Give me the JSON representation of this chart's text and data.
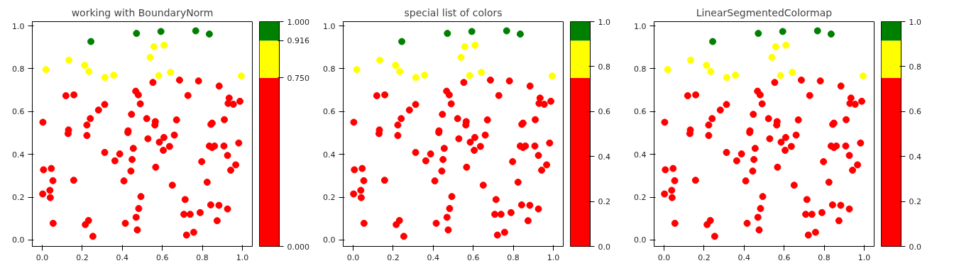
{
  "chart_data": [
    {
      "type": "scatter",
      "title": "working with BoundaryNorm",
      "xlim": [
        -0.05,
        1.05
      ],
      "ylim": [
        -0.03,
        1.02
      ],
      "xticks": [
        {
          "value": 0,
          "label": "0.0"
        },
        {
          "value": 0.2,
          "label": "0.2"
        },
        {
          "value": 0.4,
          "label": "0.4"
        },
        {
          "value": 0.6,
          "label": "0.6"
        },
        {
          "value": 0.8,
          "label": "0.8"
        },
        {
          "value": 1,
          "label": "1.0"
        }
      ],
      "yticks": [
        {
          "value": 0,
          "label": "0.0"
        },
        {
          "value": 0.2,
          "label": "0.2"
        },
        {
          "value": 0.4,
          "label": "0.4"
        },
        {
          "value": 0.6,
          "label": "0.6"
        },
        {
          "value": 0.8,
          "label": "0.8"
        },
        {
          "value": 1,
          "label": "1.0"
        }
      ],
      "clim": [
        0,
        1
      ],
      "cticks": [
        {
          "value": 0,
          "label": "0.000"
        },
        {
          "value": 0.75,
          "label": "0.750"
        },
        {
          "value": 0.916,
          "label": "0.916"
        },
        {
          "value": 1,
          "label": "1.000"
        }
      ],
      "colors": [
        "#ff0000",
        "#ffff00",
        "#008000"
      ],
      "grid": false,
      "marker": "circle",
      "series": [
        {
          "x": [
            0.243,
            0.471,
            0.593,
            0.767,
            0.835,
            0.018,
            0.133,
            0.212,
            0.233,
            0.313,
            0.357,
            0.539,
            0.558,
            0.609,
            0.582,
            0.641,
            0.995,
            0.003,
            0.118,
            0.158,
            0.131,
            0.129,
            0.223,
            0.24,
            0.223,
            0.281,
            0.312,
            0.446,
            0.429,
            0.428,
            0.467,
            0.48,
            0.49,
            0.553,
            0.686,
            0.781,
            0.884,
            0.728,
            0.934,
            0.929,
            0.955,
            0.988,
            0.522,
            0.565,
            0.563,
            0.671,
            0.849,
            0.91,
            0.455,
            0.528,
            0.585,
            0.608,
            0.605,
            0.636,
            0.66,
            0.567,
            0.65,
            0.835,
            0.849,
            0.861,
            0.908,
            0.982,
            0.926,
            0.797,
            0.967,
            0.942,
            0.824,
            0.493,
            0.482,
            0.469,
            0.475,
            0.714,
            0.708,
            0.739,
            0.789,
            0.842,
            0.883,
            0.926,
            0.874,
            0.721,
            0.757,
            0.449,
            0.443,
            0.312,
            0.363,
            0.387,
            0.408,
            0.415,
            0.006,
            0.045,
            0.053,
            0.002,
            0.038,
            0.04,
            0.157,
            0.054,
            0.215,
            0.231,
            0.253,
            0.843
          ],
          "values": [
            0.927,
            0.965,
            0.974,
            0.977,
            0.962,
            0.796,
            0.84,
            0.816,
            0.787,
            0.759,
            0.77,
            0.853,
            0.903,
            0.91,
            0.768,
            0.783,
            0.766,
            0.55,
            0.674,
            0.678,
            0.514,
            0.497,
            0.537,
            0.567,
            0.488,
            0.607,
            0.633,
            0.587,
            0.51,
            0.502,
            0.695,
            0.678,
            0.636,
            0.736,
            0.747,
            0.743,
            0.719,
            0.675,
            0.663,
            0.638,
            0.634,
            0.648,
            0.567,
            0.553,
            0.537,
            0.561,
            0.546,
            0.562,
            0.428,
            0.473,
            0.457,
            0.479,
            0.419,
            0.437,
            0.49,
            0.34,
            0.256,
            0.439,
            0.432,
            0.439,
            0.439,
            0.453,
            0.395,
            0.366,
            0.351,
            0.326,
            0.27,
            0.203,
            0.147,
            0.106,
            0.047,
            0.189,
            0.12,
            0.12,
            0.128,
            0.164,
            0.162,
            0.145,
            0.09,
            0.023,
            0.036,
            0.376,
            0.322,
            0.409,
            0.37,
            0.402,
            0.276,
            0.078,
            0.328,
            0.334,
            0.277,
            0.215,
            0.232,
            0.198,
            0.279,
            0.078,
            0.072,
            0.091,
            0.017,
            0.54
          ],
          "colors": [
            "#008000",
            "#008000",
            "#008000",
            "#008000",
            "#008000",
            "#ffff00",
            "#ffff00",
            "#ffff00",
            "#ffff00",
            "#ffff00",
            "#ffff00",
            "#ffff00",
            "#ffff00",
            "#ffff00",
            "#ffff00",
            "#ffff00",
            "#ffff00",
            "#ff0000",
            "#ff0000",
            "#ff0000",
            "#ff0000",
            "#ff0000",
            "#ff0000",
            "#ff0000",
            "#ff0000",
            "#ff0000",
            "#ff0000",
            "#ff0000",
            "#ff0000",
            "#ff0000",
            "#ff0000",
            "#ff0000",
            "#ff0000",
            "#ff0000",
            "#ff0000",
            "#ff0000",
            "#ff0000",
            "#ff0000",
            "#ff0000",
            "#ff0000",
            "#ff0000",
            "#ff0000",
            "#ff0000",
            "#ff0000",
            "#ff0000",
            "#ff0000",
            "#ff0000",
            "#ff0000",
            "#ff0000",
            "#ff0000",
            "#ff0000",
            "#ff0000",
            "#ff0000",
            "#ff0000",
            "#ff0000",
            "#ff0000",
            "#ff0000",
            "#ff0000",
            "#ff0000",
            "#ff0000",
            "#ff0000",
            "#ff0000",
            "#ff0000",
            "#ff0000",
            "#ff0000",
            "#ff0000",
            "#ff0000",
            "#ff0000",
            "#ff0000",
            "#ff0000",
            "#ff0000",
            "#ff0000",
            "#ff0000",
            "#ff0000",
            "#ff0000",
            "#ff0000",
            "#ff0000",
            "#ff0000",
            "#ff0000",
            "#ff0000",
            "#ff0000",
            "#ff0000",
            "#ff0000",
            "#ff0000",
            "#ff0000",
            "#ff0000",
            "#ff0000",
            "#ff0000",
            "#ff0000",
            "#ff0000",
            "#ff0000",
            "#ff0000",
            "#ff0000",
            "#ff0000",
            "#ff0000",
            "#ff0000",
            "#ff0000",
            "#ff0000",
            "#ff0000",
            "#ff0000"
          ]
        }
      ]
    },
    {
      "type": "scatter",
      "title": "special list of colors",
      "xlim": [
        -0.05,
        1.05
      ],
      "ylim": [
        -0.03,
        1.02
      ],
      "xticks": [
        {
          "value": 0,
          "label": "0.0"
        },
        {
          "value": 0.2,
          "label": "0.2"
        },
        {
          "value": 0.4,
          "label": "0.4"
        },
        {
          "value": 0.6,
          "label": "0.6"
        },
        {
          "value": 0.8,
          "label": "0.8"
        },
        {
          "value": 1,
          "label": "1.0"
        }
      ],
      "yticks": [
        {
          "value": 0,
          "label": "0.0"
        },
        {
          "value": 0.2,
          "label": "0.2"
        },
        {
          "value": 0.4,
          "label": "0.4"
        },
        {
          "value": 0.6,
          "label": "0.6"
        },
        {
          "value": 0.8,
          "label": "0.8"
        },
        {
          "value": 1,
          "label": "1.0"
        }
      ],
      "clim": [
        0,
        1
      ],
      "cticks": [
        {
          "value": 0,
          "label": "0.0"
        },
        {
          "value": 0.2,
          "label": "0.2"
        },
        {
          "value": 0.4,
          "label": "0.4"
        },
        {
          "value": 0.6,
          "label": "0.6"
        },
        {
          "value": 0.8,
          "label": "0.8"
        },
        {
          "value": 1,
          "label": "1.0"
        }
      ],
      "colors": [
        "#ff0000",
        "#ffff00",
        "#008000"
      ],
      "marker": "circle",
      "series": [
        {
          "x": [
            0.243,
            0.471,
            0.593,
            0.767,
            0.835,
            0.018,
            0.133,
            0.212,
            0.233,
            0.313,
            0.357,
            0.539,
            0.558,
            0.609,
            0.582,
            0.641,
            0.995,
            0.003,
            0.118,
            0.158,
            0.131,
            0.129,
            0.223,
            0.24,
            0.223,
            0.281,
            0.312,
            0.446,
            0.429,
            0.428,
            0.467,
            0.48,
            0.49,
            0.553,
            0.686,
            0.781,
            0.884,
            0.728,
            0.934,
            0.929,
            0.955,
            0.988,
            0.522,
            0.565,
            0.563,
            0.671,
            0.849,
            0.91,
            0.455,
            0.528,
            0.585,
            0.608,
            0.605,
            0.636,
            0.66,
            0.567,
            0.65,
            0.835,
            0.849,
            0.861,
            0.908,
            0.982,
            0.926,
            0.797,
            0.967,
            0.942,
            0.824,
            0.493,
            0.482,
            0.469,
            0.475,
            0.714,
            0.708,
            0.739,
            0.789,
            0.842,
            0.883,
            0.926,
            0.874,
            0.721,
            0.757,
            0.449,
            0.443,
            0.312,
            0.363,
            0.387,
            0.408,
            0.415,
            0.006,
            0.045,
            0.053,
            0.002,
            0.038,
            0.04,
            0.157,
            0.054,
            0.215,
            0.231,
            0.253,
            0.843
          ],
          "values": [
            0.927,
            0.965,
            0.974,
            0.977,
            0.962,
            0.796,
            0.84,
            0.816,
            0.787,
            0.759,
            0.77,
            0.853,
            0.903,
            0.91,
            0.768,
            0.783,
            0.766,
            0.55,
            0.674,
            0.678,
            0.514,
            0.497,
            0.537,
            0.567,
            0.488,
            0.607,
            0.633,
            0.587,
            0.51,
            0.502,
            0.695,
            0.678,
            0.636,
            0.736,
            0.747,
            0.743,
            0.719,
            0.675,
            0.663,
            0.638,
            0.634,
            0.648,
            0.567,
            0.553,
            0.537,
            0.561,
            0.546,
            0.562,
            0.428,
            0.473,
            0.457,
            0.479,
            0.419,
            0.437,
            0.49,
            0.34,
            0.256,
            0.439,
            0.432,
            0.439,
            0.439,
            0.453,
            0.395,
            0.366,
            0.351,
            0.326,
            0.27,
            0.203,
            0.147,
            0.106,
            0.047,
            0.189,
            0.12,
            0.12,
            0.128,
            0.164,
            0.162,
            0.145,
            0.09,
            0.023,
            0.036,
            0.376,
            0.322,
            0.409,
            0.37,
            0.402,
            0.276,
            0.078,
            0.328,
            0.334,
            0.277,
            0.215,
            0.232,
            0.198,
            0.279,
            0.078,
            0.072,
            0.091,
            0.017,
            0.54
          ],
          "colors": [
            "#008000",
            "#008000",
            "#008000",
            "#008000",
            "#008000",
            "#ffff00",
            "#ffff00",
            "#ffff00",
            "#ffff00",
            "#ffff00",
            "#ffff00",
            "#ffff00",
            "#ffff00",
            "#ffff00",
            "#ffff00",
            "#ffff00",
            "#ffff00",
            "#ff0000",
            "#ff0000",
            "#ff0000",
            "#ff0000",
            "#ff0000",
            "#ff0000",
            "#ff0000",
            "#ff0000",
            "#ff0000",
            "#ff0000",
            "#ff0000",
            "#ff0000",
            "#ff0000",
            "#ff0000",
            "#ff0000",
            "#ff0000",
            "#ff0000",
            "#ff0000",
            "#ff0000",
            "#ff0000",
            "#ff0000",
            "#ff0000",
            "#ff0000",
            "#ff0000",
            "#ff0000",
            "#ff0000",
            "#ff0000",
            "#ff0000",
            "#ff0000",
            "#ff0000",
            "#ff0000",
            "#ff0000",
            "#ff0000",
            "#ff0000",
            "#ff0000",
            "#ff0000",
            "#ff0000",
            "#ff0000",
            "#ff0000",
            "#ff0000",
            "#ff0000",
            "#ff0000",
            "#ff0000",
            "#ff0000",
            "#ff0000",
            "#ff0000",
            "#ff0000",
            "#ff0000",
            "#ff0000",
            "#ff0000",
            "#ff0000",
            "#ff0000",
            "#ff0000",
            "#ff0000",
            "#ff0000",
            "#ff0000",
            "#ff0000",
            "#ff0000",
            "#ff0000",
            "#ff0000",
            "#ff0000",
            "#ff0000",
            "#ff0000",
            "#ff0000",
            "#ff0000",
            "#ff0000",
            "#ff0000",
            "#ff0000",
            "#ff0000",
            "#ff0000",
            "#ff0000",
            "#ff0000",
            "#ff0000",
            "#ff0000",
            "#ff0000",
            "#ff0000",
            "#ff0000",
            "#ff0000",
            "#ff0000",
            "#ff0000",
            "#ff0000",
            "#ff0000",
            "#ff0000"
          ]
        }
      ]
    },
    {
      "type": "scatter",
      "title": "LinearSegmentedColormap",
      "xlim": [
        -0.05,
        1.05
      ],
      "ylim": [
        -0.03,
        1.02
      ],
      "xticks": [
        {
          "value": 0,
          "label": "0.0"
        },
        {
          "value": 0.2,
          "label": "0.2"
        },
        {
          "value": 0.4,
          "label": "0.4"
        },
        {
          "value": 0.6,
          "label": "0.6"
        },
        {
          "value": 0.8,
          "label": "0.8"
        },
        {
          "value": 1,
          "label": "1.0"
        }
      ],
      "yticks": [
        {
          "value": 0,
          "label": "0.0"
        },
        {
          "value": 0.2,
          "label": "0.2"
        },
        {
          "value": 0.4,
          "label": "0.4"
        },
        {
          "value": 0.6,
          "label": "0.6"
        },
        {
          "value": 0.8,
          "label": "0.8"
        },
        {
          "value": 1,
          "label": "1.0"
        }
      ],
      "clim": [
        0,
        1
      ],
      "cticks": [
        {
          "value": 0,
          "label": "0.0"
        },
        {
          "value": 0.2,
          "label": "0.2"
        },
        {
          "value": 0.4,
          "label": "0.4"
        },
        {
          "value": 0.6,
          "label": "0.6"
        },
        {
          "value": 0.8,
          "label": "0.8"
        },
        {
          "value": 1,
          "label": "1.0"
        }
      ],
      "colors": [
        "#ff0000",
        "#ffff00",
        "#008000"
      ],
      "marker": "circle",
      "series": [
        {
          "x": [
            0.243,
            0.471,
            0.593,
            0.767,
            0.835,
            0.018,
            0.133,
            0.212,
            0.233,
            0.313,
            0.357,
            0.539,
            0.558,
            0.609,
            0.582,
            0.641,
            0.995,
            0.003,
            0.118,
            0.158,
            0.131,
            0.129,
            0.223,
            0.24,
            0.223,
            0.281,
            0.312,
            0.446,
            0.429,
            0.428,
            0.467,
            0.48,
            0.49,
            0.553,
            0.686,
            0.781,
            0.884,
            0.728,
            0.934,
            0.929,
            0.955,
            0.988,
            0.522,
            0.565,
            0.563,
            0.671,
            0.849,
            0.91,
            0.455,
            0.528,
            0.585,
            0.608,
            0.605,
            0.636,
            0.66,
            0.567,
            0.65,
            0.835,
            0.849,
            0.861,
            0.908,
            0.982,
            0.926,
            0.797,
            0.967,
            0.942,
            0.824,
            0.493,
            0.482,
            0.469,
            0.475,
            0.714,
            0.708,
            0.739,
            0.789,
            0.842,
            0.883,
            0.926,
            0.874,
            0.721,
            0.757,
            0.449,
            0.443,
            0.312,
            0.363,
            0.387,
            0.408,
            0.415,
            0.006,
            0.045,
            0.053,
            0.002,
            0.038,
            0.04,
            0.157,
            0.054,
            0.215,
            0.231,
            0.253,
            0.843
          ],
          "values": [
            0.927,
            0.965,
            0.974,
            0.977,
            0.962,
            0.796,
            0.84,
            0.816,
            0.787,
            0.759,
            0.77,
            0.853,
            0.903,
            0.91,
            0.768,
            0.783,
            0.766,
            0.55,
            0.674,
            0.678,
            0.514,
            0.497,
            0.537,
            0.567,
            0.488,
            0.607,
            0.633,
            0.587,
            0.51,
            0.502,
            0.695,
            0.678,
            0.636,
            0.736,
            0.747,
            0.743,
            0.719,
            0.675,
            0.663,
            0.638,
            0.634,
            0.648,
            0.567,
            0.553,
            0.537,
            0.561,
            0.546,
            0.562,
            0.428,
            0.473,
            0.457,
            0.479,
            0.419,
            0.437,
            0.49,
            0.34,
            0.256,
            0.439,
            0.432,
            0.439,
            0.439,
            0.453,
            0.395,
            0.366,
            0.351,
            0.326,
            0.27,
            0.203,
            0.147,
            0.106,
            0.047,
            0.189,
            0.12,
            0.12,
            0.128,
            0.164,
            0.162,
            0.145,
            0.09,
            0.023,
            0.036,
            0.376,
            0.322,
            0.409,
            0.37,
            0.402,
            0.276,
            0.078,
            0.328,
            0.334,
            0.277,
            0.215,
            0.232,
            0.198,
            0.279,
            0.078,
            0.072,
            0.091,
            0.017,
            0.54
          ],
          "colors": [
            "#008000",
            "#008000",
            "#008000",
            "#008000",
            "#008000",
            "#ffff00",
            "#ffff00",
            "#ffff00",
            "#ffff00",
            "#ffff00",
            "#ffff00",
            "#ffff00",
            "#ffff00",
            "#ffff00",
            "#ffff00",
            "#ffff00",
            "#ffff00",
            "#ff0000",
            "#ff0000",
            "#ff0000",
            "#ff0000",
            "#ff0000",
            "#ff0000",
            "#ff0000",
            "#ff0000",
            "#ff0000",
            "#ff0000",
            "#ff0000",
            "#ff0000",
            "#ff0000",
            "#ff0000",
            "#ff0000",
            "#ff0000",
            "#ff0000",
            "#ff0000",
            "#ff0000",
            "#ff0000",
            "#ff0000",
            "#ff0000",
            "#ff0000",
            "#ff0000",
            "#ff0000",
            "#ff0000",
            "#ff0000",
            "#ff0000",
            "#ff0000",
            "#ff0000",
            "#ff0000",
            "#ff0000",
            "#ff0000",
            "#ff0000",
            "#ff0000",
            "#ff0000",
            "#ff0000",
            "#ff0000",
            "#ff0000",
            "#ff0000",
            "#ff0000",
            "#ff0000",
            "#ff0000",
            "#ff0000",
            "#ff0000",
            "#ff0000",
            "#ff0000",
            "#ff0000",
            "#ff0000",
            "#ff0000",
            "#ff0000",
            "#ff0000",
            "#ff0000",
            "#ff0000",
            "#ff0000",
            "#ff0000",
            "#ff0000",
            "#ff0000",
            "#ff0000",
            "#ff0000",
            "#ff0000",
            "#ff0000",
            "#ff0000",
            "#ff0000",
            "#ff0000",
            "#ff0000",
            "#ff0000",
            "#ff0000",
            "#ff0000",
            "#ff0000",
            "#ff0000",
            "#ff0000",
            "#ff0000",
            "#ff0000",
            "#ff0000",
            "#ff0000",
            "#ff0000",
            "#ff0000",
            "#ff0000",
            "#ff0000",
            "#ff0000",
            "#ff0000",
            "#ff0000"
          ]
        }
      ]
    }
  ]
}
